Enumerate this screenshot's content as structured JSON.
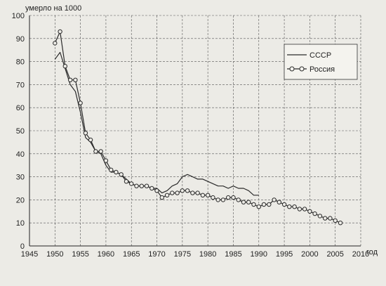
{
  "chart_data": {
    "type": "line",
    "ylabel": "умерло на 1000",
    "xlabel": "год",
    "xlim": [
      1945,
      2010
    ],
    "ylim": [
      0,
      100
    ],
    "xticks": [
      1945,
      1950,
      1955,
      1960,
      1965,
      1970,
      1975,
      1980,
      1985,
      1990,
      1995,
      2000,
      2005,
      2010
    ],
    "yticks": [
      0,
      10,
      20,
      30,
      40,
      50,
      60,
      70,
      80,
      90,
      100
    ],
    "grid": true,
    "legend_position": "top-right",
    "series": [
      {
        "name": "СССР",
        "marker": "none",
        "color": "#2b2b2b",
        "x": [
          1950,
          1951,
          1952,
          1953,
          1954,
          1955,
          1956,
          1957,
          1958,
          1959,
          1960,
          1961,
          1962,
          1963,
          1964,
          1965,
          1966,
          1967,
          1968,
          1969,
          1970,
          1971,
          1972,
          1973,
          1974,
          1975,
          1976,
          1977,
          1978,
          1979,
          1980,
          1981,
          1982,
          1983,
          1984,
          1985,
          1986,
          1987,
          1988,
          1989,
          1990
        ],
        "values": [
          81,
          84,
          77,
          70,
          67,
          58,
          47,
          45,
          41,
          40,
          35,
          32,
          32,
          31,
          29,
          27,
          26,
          26,
          26,
          25,
          25,
          23,
          24,
          26,
          27,
          30,
          31,
          30,
          29,
          29,
          28,
          27,
          26,
          26,
          25,
          26,
          25,
          25,
          24,
          22,
          22
        ]
      },
      {
        "name": "Россия",
        "marker": "circle",
        "color": "#2b2b2b",
        "x": [
          1950,
          1951,
          1952,
          1953,
          1954,
          1955,
          1956,
          1957,
          1958,
          1959,
          1960,
          1961,
          1962,
          1963,
          1964,
          1965,
          1966,
          1967,
          1968,
          1969,
          1970,
          1971,
          1972,
          1973,
          1974,
          1975,
          1976,
          1977,
          1978,
          1979,
          1980,
          1981,
          1982,
          1983,
          1984,
          1985,
          1986,
          1987,
          1988,
          1989,
          1990,
          1991,
          1992,
          1993,
          1994,
          1995,
          1996,
          1997,
          1998,
          1999,
          2000,
          2001,
          2002,
          2003,
          2004,
          2005,
          2006
        ],
        "values": [
          88,
          93,
          78,
          72,
          72,
          62,
          49,
          46,
          41,
          41,
          37,
          33,
          32,
          31,
          28,
          27,
          26,
          26,
          26,
          25,
          24,
          21,
          22,
          23,
          23,
          24,
          24,
          23,
          23,
          22,
          22,
          21,
          20,
          20,
          21,
          21,
          20,
          19,
          19,
          18,
          17,
          18,
          18,
          20,
          19,
          18,
          17,
          17,
          16,
          16,
          15,
          14,
          13,
          12,
          12,
          11,
          10
        ]
      }
    ]
  }
}
